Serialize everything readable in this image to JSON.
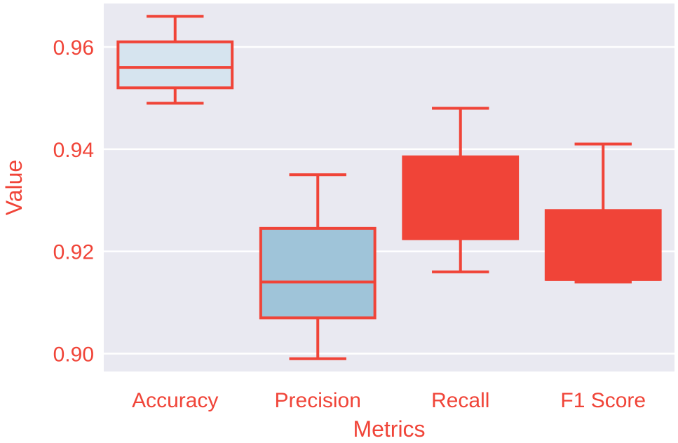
{
  "chart_data": {
    "type": "box",
    "title": "",
    "xlabel": "Metrics",
    "ylabel": "Value",
    "ylim": [
      0.8965,
      0.9685
    ],
    "yticks": [
      0.9,
      0.92,
      0.94,
      0.96
    ],
    "ytick_labels": [
      "0.90",
      "0.92",
      "0.94",
      "0.96"
    ],
    "grid": true,
    "categories": [
      "Accuracy",
      "Precision",
      "Recall",
      "F1 Score"
    ],
    "boxes": [
      {
        "category": "Accuracy",
        "whisker_low": 0.949,
        "q1": 0.952,
        "median": 0.956,
        "q3": 0.961,
        "whisker_high": 0.966,
        "fill": "#d6e4ef"
      },
      {
        "category": "Precision",
        "whisker_low": 0.899,
        "q1": 0.907,
        "median": 0.914,
        "q3": 0.9245,
        "whisker_high": 0.935,
        "fill": "#9fc4d9"
      },
      {
        "category": "Recall",
        "whisker_low": 0.916,
        "q1": 0.9225,
        "median": 0.9225,
        "q3": 0.9385,
        "whisker_high": 0.948,
        "fill": "#f04438"
      },
      {
        "category": "F1 Score",
        "whisker_low": 0.914,
        "q1": 0.9145,
        "median": 0.9145,
        "q3": 0.928,
        "whisker_high": 0.941,
        "fill": "#f04438"
      }
    ],
    "colors": {
      "plot_background": "#e9e9f1",
      "grid": "#ffffff",
      "text": "#f04438",
      "box_edge": "#f04438"
    }
  }
}
